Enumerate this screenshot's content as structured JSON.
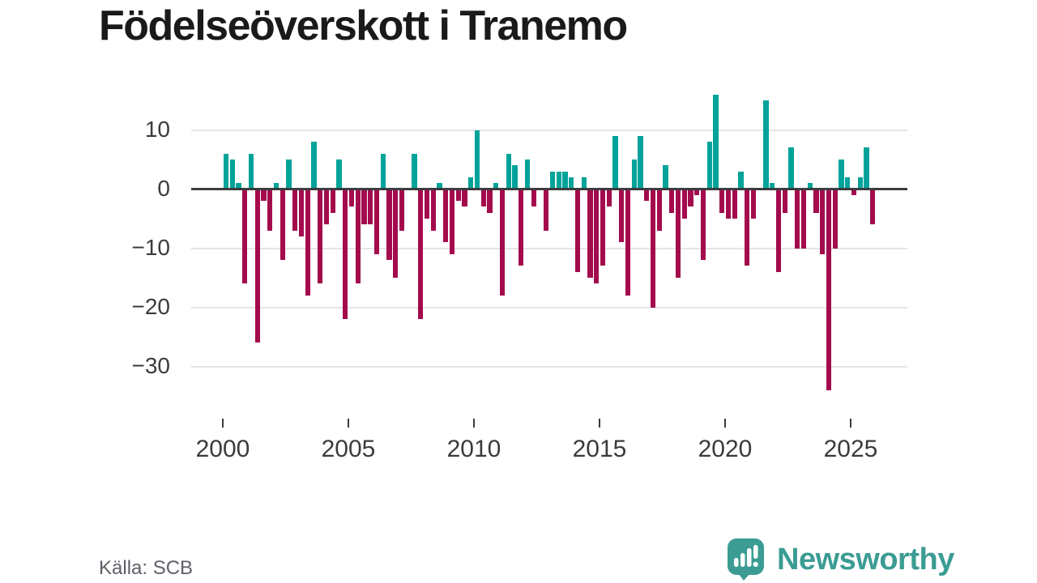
{
  "title": "Födelseöverskott i Tranemo",
  "source": "Källa: SCB",
  "branding": {
    "logo_text": "Newsworthy",
    "icon": "bar-chart-speech-bubble-icon",
    "logo_color": "#3b9c93"
  },
  "colors": {
    "positive": "#00a39a",
    "negative": "#a30b4d",
    "zero_line": "#3d3d3d",
    "gridline": "#e4e4e4",
    "axis_text": "#3b3b3b",
    "title_text": "#1a1a1a",
    "source_text": "#5f5f68",
    "background": "#ffffff"
  },
  "chart_data": {
    "type": "bar",
    "title": "Födelseöverskott i Tranemo",
    "frequency": "quarterly",
    "start": "2000Q1",
    "end": "2025Q4",
    "xlabel": "",
    "ylabel": "",
    "grid": "horizontal",
    "legend": "none",
    "ylim": [
      -36,
      18
    ],
    "y_ticks": [
      10,
      0,
      -10,
      -20,
      -30
    ],
    "y_tick_labels": [
      "10",
      "0",
      "−10",
      "−20",
      "−30"
    ],
    "x_tick_years": [
      2000,
      2005,
      2010,
      2015,
      2020,
      2025
    ],
    "x_tick_labels": [
      "2000",
      "2005",
      "2010",
      "2015",
      "2020",
      "2025"
    ],
    "values": [
      6,
      5,
      1,
      -16,
      6,
      -26,
      -2,
      -7,
      1,
      -12,
      5,
      -7,
      -8,
      -18,
      8,
      -16,
      -6,
      -4,
      5,
      -22,
      -3,
      -16,
      -6,
      -6,
      -11,
      6,
      -12,
      -15,
      -7,
      0,
      6,
      -22,
      -5,
      -7,
      1,
      -9,
      -11,
      -2,
      -3,
      2,
      10,
      -3,
      -4,
      1,
      -18,
      6,
      4,
      -13,
      5,
      -3,
      0,
      -7,
      3,
      3,
      3,
      2,
      -14,
      2,
      -15,
      -16,
      -13,
      -3,
      9,
      -9,
      -18,
      5,
      9,
      -2,
      -20,
      -7,
      4,
      -4,
      -15,
      -5,
      -3,
      -1,
      -12,
      8,
      16,
      -4,
      -5,
      -5,
      3,
      -13,
      -5,
      0,
      15,
      1,
      -14,
      -4,
      7,
      -10,
      -10,
      1,
      -4,
      -11,
      -34,
      -10,
      5,
      2,
      -1,
      2,
      7,
      -6
    ]
  }
}
